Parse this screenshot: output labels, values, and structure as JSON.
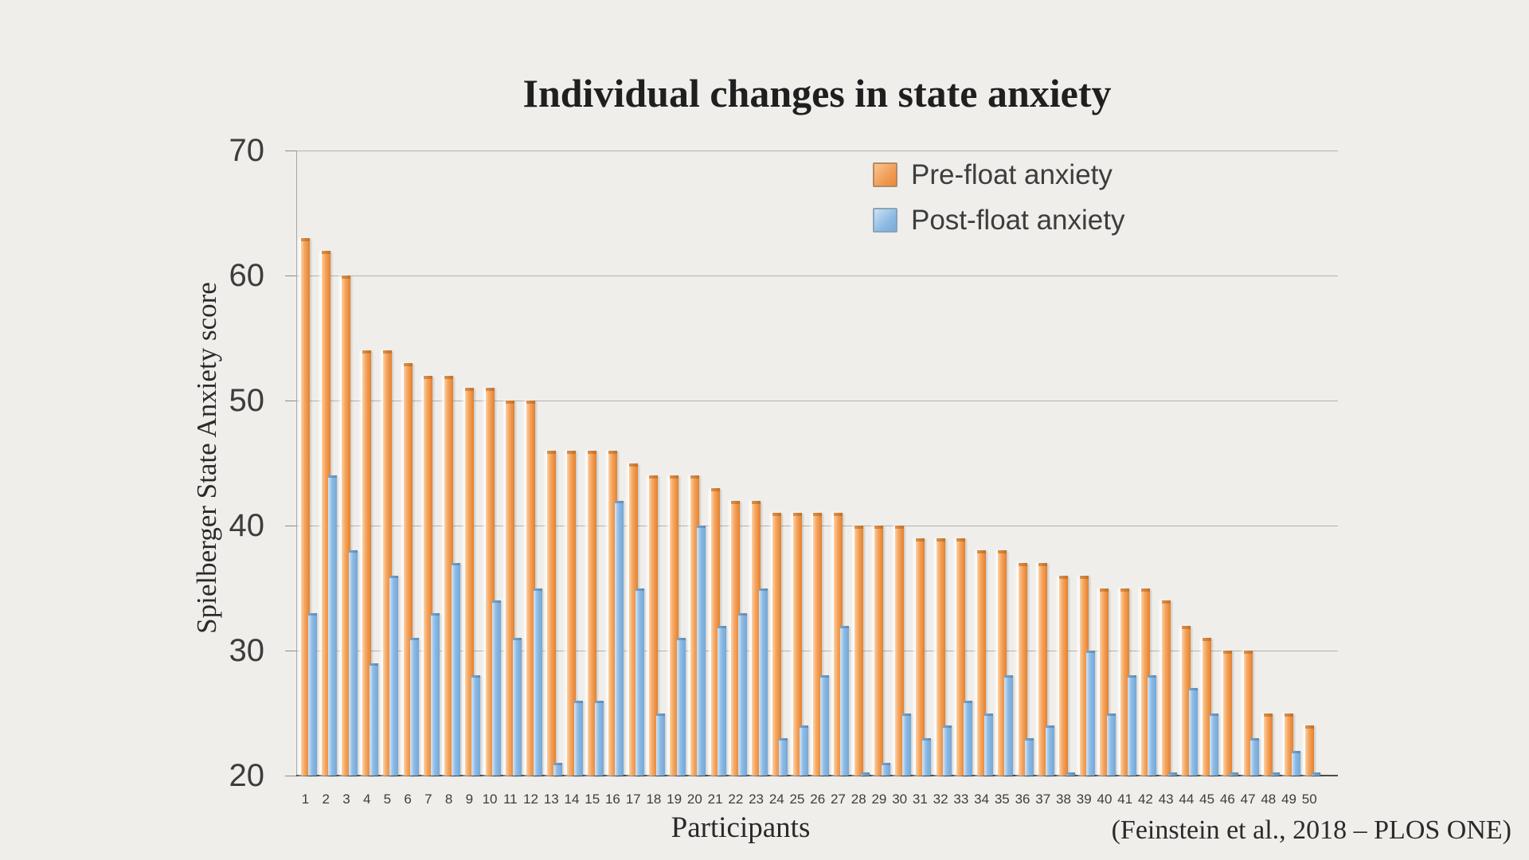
{
  "title": "Individual changes in state anxiety",
  "y_axis": {
    "label": "Spielberger State Anxiety score",
    "ticks": [
      70,
      60,
      50,
      40,
      30,
      20
    ],
    "min": 20,
    "max": 70
  },
  "x_axis": {
    "label": "Participants"
  },
  "citation": "(Feinstein et al., 2018 – PLOS ONE)",
  "legend": {
    "items": [
      {
        "label": "Pre-float anxiety",
        "color": "#ED8D3E"
      },
      {
        "label": "Post-float anxiety",
        "color": "#8CBAE4"
      }
    ],
    "position": "top-right"
  },
  "colors": {
    "background": "#EFEEEB",
    "pre_bar": "#ED8D3E",
    "post_bar": "#8CBAE4",
    "gridline": "#B5B2AD",
    "axis": "#4C4C4A",
    "text": "#3D3D3D"
  },
  "chart_data": {
    "type": "bar",
    "title": "Individual changes in state anxiety",
    "xlabel": "Participants",
    "ylabel": "Spielberger State Anxiety score",
    "ylim": [
      20,
      70
    ],
    "grid": true,
    "legend_position": "top-right",
    "categories": [
      1,
      2,
      3,
      4,
      5,
      6,
      7,
      8,
      9,
      10,
      11,
      12,
      13,
      14,
      15,
      16,
      17,
      18,
      19,
      20,
      21,
      22,
      23,
      24,
      25,
      26,
      27,
      28,
      29,
      30,
      31,
      32,
      33,
      34,
      35,
      36,
      37,
      38,
      39,
      40,
      41,
      42,
      43,
      44,
      45,
      46,
      47,
      48,
      49,
      50
    ],
    "series": [
      {
        "name": "Pre-float anxiety",
        "values": [
          63,
          62,
          60,
          54,
          54,
          53,
          52,
          52,
          51,
          51,
          50,
          50,
          46,
          46,
          46,
          46,
          45,
          44,
          44,
          44,
          43,
          42,
          42,
          41,
          41,
          41,
          41,
          40,
          40,
          40,
          39,
          39,
          39,
          38,
          38,
          37,
          37,
          36,
          36,
          35,
          35,
          35,
          34,
          32,
          31,
          30,
          30,
          25,
          25,
          24
        ]
      },
      {
        "name": "Post-float anxiety",
        "values": [
          33,
          44,
          38,
          29,
          36,
          31,
          33,
          37,
          28,
          34,
          31,
          35,
          21,
          26,
          26,
          42,
          35,
          25,
          31,
          40,
          32,
          33,
          35,
          23,
          24,
          28,
          32,
          20,
          21,
          25,
          23,
          24,
          26,
          25,
          28,
          23,
          24,
          20,
          30,
          25,
          28,
          28,
          20,
          27,
          25,
          20,
          23,
          20,
          22,
          20
        ]
      }
    ]
  }
}
